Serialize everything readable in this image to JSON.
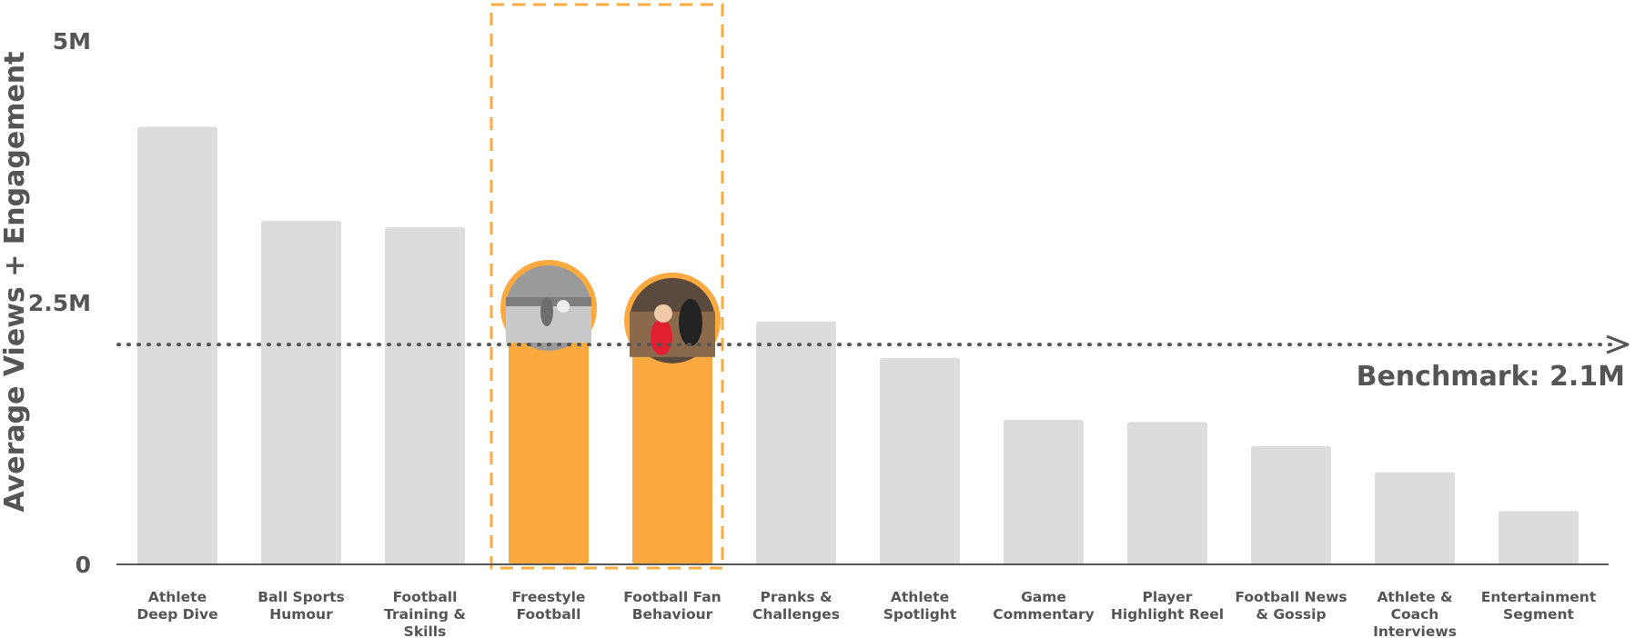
{
  "chart_data": {
    "type": "bar",
    "ylabel": "Average Views + Engagement",
    "ylim": [
      0,
      5000000
    ],
    "yticks": [
      {
        "value": 0,
        "label": "0"
      },
      {
        "value": 2500000,
        "label": "2.5M"
      },
      {
        "value": 5000000,
        "label": "5M"
      }
    ],
    "categories": [
      "Athlete Deep Dive",
      "Ball Sports Humour",
      "Football Training & Skills",
      "Freestyle Football",
      "Football Fan Behaviour",
      "Pranks & Challenges",
      "Athlete Spotlight",
      "Game Commentary",
      "Player Highlight Reel",
      "Football News & Gossip",
      "Athlete & Coach Interviews",
      "Entertainment Segment"
    ],
    "category_lines": [
      [
        "Athlete",
        "Deep Dive"
      ],
      [
        "Ball Sports",
        "Humour"
      ],
      [
        "Football",
        "Training &",
        "Skills"
      ],
      [
        "Freestyle",
        "Football"
      ],
      [
        "Football Fan",
        "Behaviour"
      ],
      [
        "Pranks &",
        "Challenges"
      ],
      [
        "Athlete",
        "Spotlight"
      ],
      [
        "Game",
        "Commentary"
      ],
      [
        "Player",
        "Highlight Reel"
      ],
      [
        "Football News",
        "& Gossip"
      ],
      [
        "Athlete &",
        "Coach",
        "Interviews"
      ],
      [
        "Entertainment",
        "Segment"
      ]
    ],
    "values": [
      4180000,
      3280000,
      3220000,
      2500000,
      2380000,
      2320000,
      1970000,
      1380000,
      1360000,
      1130000,
      880000,
      510000
    ],
    "highlighted": [
      3,
      4
    ],
    "benchmark": {
      "value": 2100000,
      "label": "Benchmark: 2.1M"
    },
    "colors": {
      "bar": "#dcdcdc",
      "highlight": "#fcaa3f",
      "text": "#555555",
      "axis": "#555555"
    }
  }
}
